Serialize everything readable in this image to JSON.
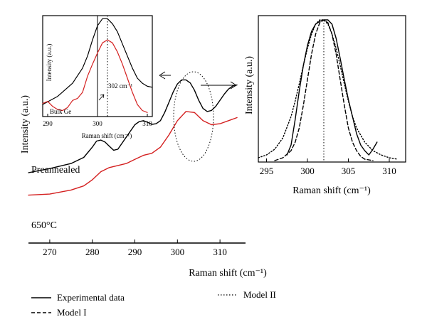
{
  "chart_data": [
    {
      "panel": "main",
      "type": "line",
      "xlabel": "Raman shift (cm⁻¹)",
      "ylabel": "Intensity (a.u.)",
      "xlim": [
        265,
        316
      ],
      "xticks": [
        270,
        280,
        290,
        300,
        310
      ],
      "ylim": [
        0,
        1
      ],
      "grid": false,
      "annotations": [
        "Preannealed",
        "650°C"
      ],
      "series": [
        {
          "name": "Preannealed",
          "color": "#000000",
          "style": "solid",
          "x": [
            265,
            270,
            275,
            278,
            280,
            281,
            282,
            283,
            284,
            285,
            286,
            287,
            288,
            289,
            290,
            291,
            292,
            293,
            294,
            295,
            296,
            297,
            298,
            299,
            300,
            301,
            302,
            303,
            304,
            305,
            306,
            307,
            308,
            309,
            310,
            311,
            312,
            313,
            314
          ],
          "y": [
            0.345,
            0.365,
            0.39,
            0.42,
            0.47,
            0.5,
            0.505,
            0.495,
            0.475,
            0.455,
            0.46,
            0.49,
            0.52,
            0.55,
            0.58,
            0.595,
            0.6,
            0.592,
            0.582,
            0.585,
            0.6,
            0.64,
            0.69,
            0.74,
            0.78,
            0.8,
            0.8,
            0.785,
            0.75,
            0.7,
            0.66,
            0.645,
            0.65,
            0.67,
            0.7,
            0.73,
            0.755,
            0.77,
            0.775
          ]
        },
        {
          "name": "650°C",
          "color": "#d42020",
          "style": "solid",
          "x": [
            265,
            270,
            275,
            278,
            280,
            282,
            284,
            286,
            288,
            290,
            292,
            294,
            296,
            298,
            300,
            302,
            304,
            306,
            308,
            310,
            312,
            314
          ],
          "y": [
            0.235,
            0.24,
            0.26,
            0.28,
            0.31,
            0.35,
            0.37,
            0.38,
            0.39,
            0.41,
            0.43,
            0.44,
            0.47,
            0.53,
            0.6,
            0.645,
            0.64,
            0.6,
            0.58,
            0.585,
            0.6,
            0.615
          ]
        }
      ]
    },
    {
      "panel": "inset-left",
      "type": "line",
      "xlabel": "Raman shift (cm⁻¹)",
      "ylabel": "Intensity (a.u.)",
      "xlim": [
        289,
        311
      ],
      "xticks": [
        290,
        300,
        310
      ],
      "ylim": [
        0,
        1
      ],
      "reference_lines": [
        {
          "x": 300,
          "style": "solid",
          "label": "Bulk Ge"
        },
        {
          "x": 302,
          "style": "dotted",
          "label": "302 cm⁻¹"
        }
      ],
      "series": [
        {
          "name": "Preannealed",
          "color": "#000000",
          "x": [
            289,
            292,
            295,
            297,
            298,
            299,
            300,
            301,
            302,
            303,
            304,
            305,
            306,
            307,
            308,
            309,
            310,
            311
          ],
          "y": [
            0.12,
            0.2,
            0.33,
            0.48,
            0.6,
            0.76,
            0.9,
            0.97,
            0.97,
            0.92,
            0.84,
            0.72,
            0.6,
            0.48,
            0.38,
            0.33,
            0.3,
            0.29
          ]
        },
        {
          "name": "650°C",
          "color": "#d42020",
          "x": [
            289,
            290,
            291,
            292,
            293,
            294,
            295,
            296,
            297,
            298,
            299,
            300,
            301,
            302,
            303,
            304,
            305,
            306,
            307,
            308,
            309,
            310
          ],
          "y": [
            0.13,
            0.15,
            0.1,
            0.07,
            0.06,
            0.09,
            0.16,
            0.18,
            0.24,
            0.4,
            0.52,
            0.63,
            0.73,
            0.76,
            0.73,
            0.64,
            0.52,
            0.38,
            0.24,
            0.12,
            0.06,
            0.04
          ]
        }
      ]
    },
    {
      "panel": "inset-right",
      "type": "line",
      "xlabel": "Raman shift (cm⁻¹)",
      "ylabel": "Intensity (a.u.)",
      "xlim": [
        294,
        312
      ],
      "xticks": [
        295,
        300,
        305,
        310
      ],
      "ylim": [
        0,
        1
      ],
      "reference_lines": [
        {
          "x": 302,
          "style": "dotted"
        }
      ],
      "series": [
        {
          "name": "Experimental data",
          "color": "#000000",
          "style": "solid",
          "x": [
            297.5,
            298,
            298.5,
            299,
            299.5,
            300,
            300.5,
            301,
            301.5,
            302,
            302.5,
            303,
            303.5,
            304,
            304.5,
            305,
            305.5,
            306,
            306.5,
            307,
            307.5,
            308,
            308.5
          ],
          "y": [
            0.05,
            0.12,
            0.3,
            0.5,
            0.68,
            0.82,
            0.92,
            0.97,
            0.99,
            1.0,
            1.0,
            0.97,
            0.87,
            0.73,
            0.58,
            0.44,
            0.32,
            0.2,
            0.12,
            0.08,
            0.05,
            0.09,
            0.14
          ]
        },
        {
          "name": "Model I",
          "color": "#000000",
          "style": "dashed",
          "x": [
            296,
            297,
            298,
            298.5,
            299,
            299.5,
            300,
            300.5,
            301,
            301.5,
            302,
            302.5,
            303,
            303.5,
            304,
            304.5,
            305,
            305.5,
            306,
            306.5,
            307,
            308
          ],
          "y": [
            0.01,
            0.03,
            0.08,
            0.14,
            0.24,
            0.4,
            0.58,
            0.76,
            0.9,
            0.98,
            1.0,
            0.98,
            0.9,
            0.76,
            0.58,
            0.4,
            0.24,
            0.14,
            0.08,
            0.04,
            0.02,
            0.01
          ]
        },
        {
          "name": "Model II",
          "color": "#000000",
          "style": "dotted",
          "x": [
            294,
            295,
            296,
            297,
            298,
            298.5,
            299,
            299.5,
            300,
            300.5,
            301,
            301.5,
            302,
            302.5,
            303,
            303.5,
            304,
            304.5,
            305,
            305.5,
            306,
            307,
            308,
            309,
            310,
            311
          ],
          "y": [
            0.03,
            0.05,
            0.09,
            0.17,
            0.32,
            0.43,
            0.55,
            0.68,
            0.8,
            0.9,
            0.97,
            1.0,
            1.0,
            0.97,
            0.9,
            0.8,
            0.68,
            0.55,
            0.43,
            0.32,
            0.24,
            0.14,
            0.08,
            0.05,
            0.03,
            0.02
          ]
        }
      ]
    }
  ],
  "legend": [
    {
      "label": "Experimental data",
      "style": "solid"
    },
    {
      "label": "Model I",
      "style": "dashed"
    },
    {
      "label": "Model II",
      "style": "dotted"
    }
  ],
  "colors": {
    "black": "#000000",
    "red": "#d42020"
  }
}
